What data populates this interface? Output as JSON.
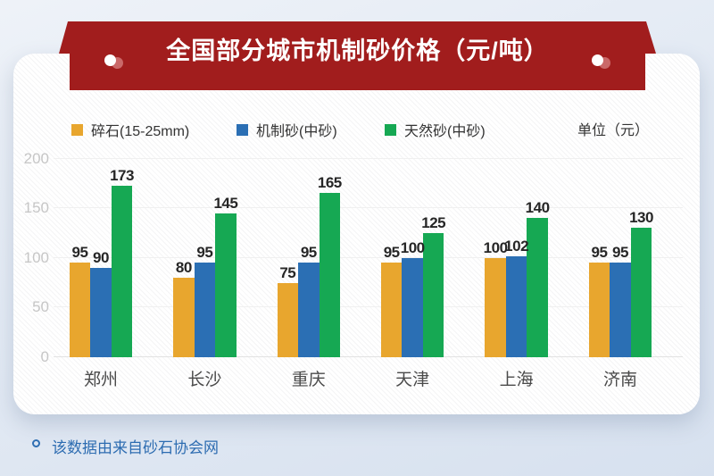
{
  "banner": {
    "title": "全国部分城市机制砂价格（元/吨）",
    "color": "#A11D1D",
    "dot_color": "#FFFFFF"
  },
  "legend": {
    "items": [
      {
        "label": "碎石(15-25mm)",
        "color": "#E8A62E"
      },
      {
        "label": "机制砂(中砂)",
        "color": "#2B6FB4"
      },
      {
        "label": "天然砂(中砂)",
        "color": "#16A853"
      }
    ],
    "unit_label": "单位（元）"
  },
  "chart_data": {
    "type": "bar",
    "title": "全国部分城市机制砂价格（元/吨）",
    "categories": [
      "郑州",
      "长沙",
      "重庆",
      "天津",
      "上海",
      "济南"
    ],
    "series": [
      {
        "name": "碎石(15-25mm)",
        "color": "#E8A62E",
        "values": [
          95,
          80,
          75,
          95,
          100,
          95
        ]
      },
      {
        "name": "机制砂(中砂)",
        "color": "#2B6FB4",
        "values": [
          90,
          95,
          95,
          100,
          102,
          95
        ]
      },
      {
        "name": "天然砂(中砂)",
        "color": "#16A853",
        "values": [
          173,
          145,
          165,
          125,
          140,
          130
        ]
      }
    ],
    "xlabel": "",
    "ylabel": "单位（元）",
    "ylim": [
      0,
      200
    ],
    "yticks": [
      0,
      50,
      100,
      150,
      200
    ],
    "grid": true,
    "legend_position": "top",
    "source_note": "该数据由来自砂石协会网"
  },
  "footer": {
    "note": "该数据由来自砂石协会网",
    "color": "#2D6CB1"
  },
  "colors": {
    "background": "#E3EAF4",
    "card": "#FFFFFF",
    "banner_red": "#A11D1D",
    "grid_line": "#F0F0F0",
    "axis_line": "#E2E2E2",
    "tick_label": "#C6C6C6",
    "value_label": "#262626",
    "city_label": "#4A4A4A",
    "legend_text": "#333333",
    "note_blue": "#2D6CB1"
  }
}
